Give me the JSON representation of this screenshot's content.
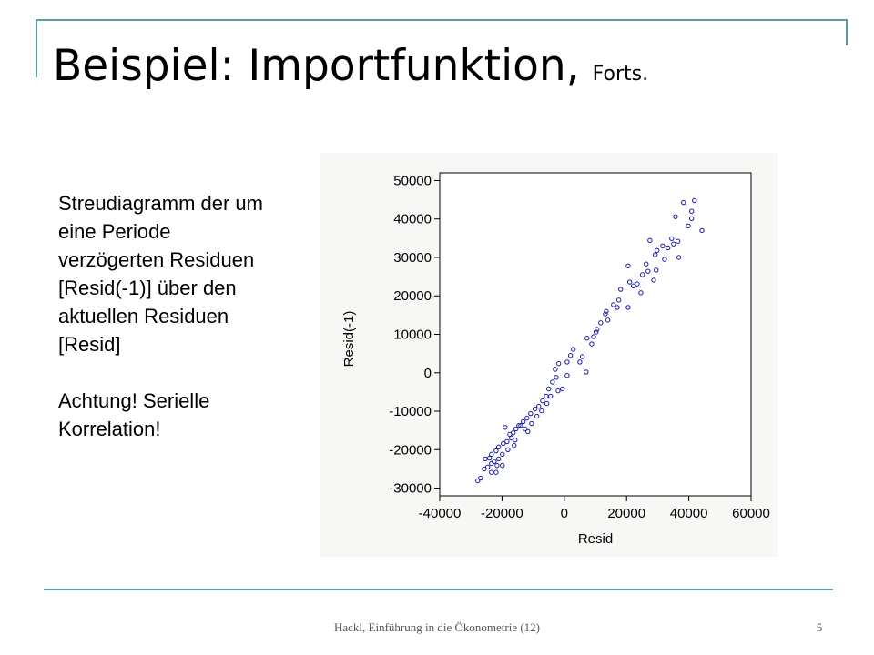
{
  "header": {
    "title": "Beispiel: Importfunktion,",
    "subtitle": "Forts."
  },
  "text": {
    "lines": [
      "Streudiagramm der um",
      "eine Periode",
      "verzögerten Residuen",
      "[Resid(-1)] über den",
      "aktuellen Residuen",
      "[Resid]",
      "",
      "Achtung! Serielle",
      "Korrelation!"
    ]
  },
  "footer": {
    "text": "Hackl, Einführung in die Ökonometrie (12)",
    "page": "5"
  },
  "chart_data": {
    "type": "scatter",
    "x_label": "Resid",
    "y_label": "Resid(-1)",
    "color": "#1a1aa8",
    "xlim": [
      -40000,
      60000
    ],
    "ylim": [
      -32000,
      52000
    ],
    "xticks": [
      -40000,
      -20000,
      0,
      20000,
      40000,
      60000
    ],
    "yticks": [
      -30000,
      -20000,
      -10000,
      0,
      10000,
      20000,
      30000,
      40000,
      50000
    ],
    "x": [
      41800,
      38300,
      40900,
      44200,
      39800,
      35700,
      36800,
      34500,
      31600,
      29800,
      33300,
      29200,
      27500,
      26300,
      29500,
      28700,
      25100,
      23400,
      24600,
      20500,
      21000,
      18100,
      15800,
      17000,
      20500,
      13500,
      14000,
      11700,
      10500,
      9400,
      7300,
      8800,
      7000,
      2900,
      2000,
      900,
      -1800,
      -2900,
      -3800,
      -5000,
      -5800,
      -7000,
      -8200,
      -9400,
      -10800,
      -12000,
      -13200,
      -14600,
      -15500,
      -16400,
      -17000,
      -18400,
      -19600,
      -21100,
      -21900,
      -23400,
      -24000,
      -22500,
      -21600,
      -24600,
      -23400,
      -26900,
      -27800,
      -25400,
      -21100,
      -19900,
      -18100,
      -16100,
      -17500,
      -14000,
      -12600,
      -10500,
      -7300,
      -5600,
      -2000,
      900,
      5000,
      5800,
      10200,
      13200,
      17500,
      22200,
      26900,
      32200,
      35100,
      36500,
      40900,
      -19900,
      -23400,
      -21900,
      -25700,
      -19000,
      -15800,
      -11700,
      -8800,
      -4400,
      -600,
      -2600
    ],
    "values": [
      44800,
      44300,
      42000,
      37000,
      38200,
      40600,
      30000,
      34900,
      33000,
      31800,
      32500,
      30700,
      34400,
      28300,
      26700,
      24100,
      25500,
      23100,
      20800,
      27800,
      23600,
      21700,
      17700,
      17000,
      17000,
      16000,
      13700,
      13000,
      11300,
      9400,
      9000,
      7500,
      200,
      6100,
      4500,
      2800,
      2400,
      900,
      -2400,
      -4200,
      -6100,
      -7300,
      -8700,
      -9400,
      -10600,
      -11800,
      -12700,
      -13700,
      -14600,
      -15600,
      -17000,
      -17900,
      -18400,
      -19300,
      -20300,
      -21200,
      -22200,
      -23100,
      -24100,
      -24500,
      -25900,
      -27400,
      -28100,
      -22400,
      -22400,
      -21200,
      -20000,
      -18900,
      -16000,
      -13700,
      -14600,
      -13200,
      -9900,
      -8000,
      -4700,
      -700,
      2800,
      4200,
      10600,
      15300,
      18900,
      22600,
      26400,
      29500,
      33500,
      34200,
      40100,
      -24100,
      -23600,
      -25900,
      -25000,
      -14200,
      -17500,
      -15300,
      -11300,
      -6100,
      -4200,
      -1200
    ]
  }
}
